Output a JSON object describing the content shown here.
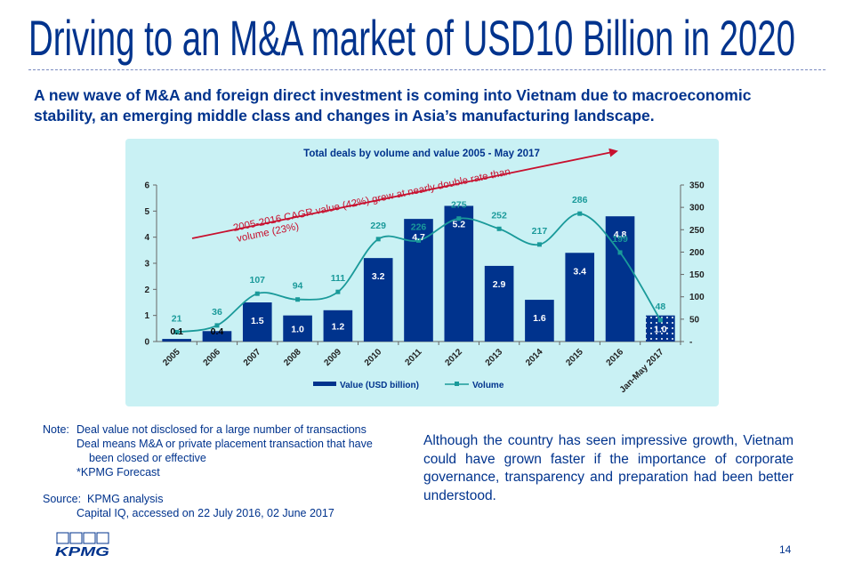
{
  "page": {
    "title": "Driving to an M&A market of USD10 Billion in 2020",
    "lead": "A new wave of M&A and foreign direct investment is coming into Vietnam due to macroeconomic stability, an emerging middle class and changes in Asia’s manufacturing landscape.",
    "notes": {
      "note_label": "Note:",
      "note_1": "Deal value not disclosed for a large number of transactions",
      "note_2a": "Deal means M&A or private placement transaction that have",
      "note_2b": "been closed or effective",
      "note_3": "*KPMG Forecast",
      "source_label": "Source:",
      "source_1": "KPMG analysis",
      "source_2": "Capital IQ, accessed on 22 July 2016, 02 June 2017"
    },
    "commentary": "Although the country has seen impressive growth, Vietnam could have grown faster if the importance of corporate governance, transparency and preparation had been better understood.",
    "logo_text": "KPMG",
    "page_number": "14"
  },
  "colors": {
    "brand": "#00338D",
    "bar": "#00338D",
    "line": "#1a9a9a",
    "chart_bg": "#c9f1f4",
    "arrow": "#c8102e"
  },
  "chart_data": {
    "type": "bar",
    "title": "Total deals by volume and value 2005 - May 2017",
    "categories": [
      "2005",
      "2006",
      "2007",
      "2008",
      "2009",
      "2010",
      "2011",
      "2012",
      "2013",
      "2014",
      "2015",
      "2016",
      "Jan-May 2017"
    ],
    "series": [
      {
        "name": "Value (USD billion)",
        "type": "bar",
        "axis": "left",
        "values": [
          0.1,
          0.4,
          1.5,
          1.0,
          1.2,
          3.2,
          4.7,
          5.2,
          2.9,
          1.6,
          3.4,
          4.8,
          1.0
        ],
        "labels": [
          "0.1",
          "0.4",
          "1.5",
          "1.0",
          "1.2",
          "3.2",
          "4.7",
          "5.2",
          "2.9",
          "1.6",
          "3.4",
          "4.8",
          "1.0"
        ]
      },
      {
        "name": "Volume",
        "type": "line",
        "axis": "right",
        "values": [
          21,
          36,
          107,
          94,
          111,
          229,
          226,
          275,
          252,
          217,
          286,
          199,
          48
        ],
        "labels": [
          "21",
          "36",
          "107",
          "94",
          "111",
          "229",
          "226",
          "275",
          "252",
          "217",
          "286",
          "199",
          "48"
        ]
      }
    ],
    "forecast_category": "Jan-May 2017",
    "y_left": {
      "min": 0,
      "max": 6,
      "ticks": [
        "0",
        "1",
        "2",
        "3",
        "4",
        "5",
        "6"
      ]
    },
    "y_right": {
      "min": 0,
      "max": 350,
      "ticks": [
        "-",
        "50",
        "100",
        "150",
        "200",
        "250",
        "300",
        "350"
      ]
    },
    "annotation": "2005-2016 CAGR value (42%) grew at nearly double rate than volume (23%)",
    "annotation_lines": [
      "2005-2016 CAGR value (42%) grew at nearly double rate than",
      "volume (23%)"
    ],
    "legend_position": "bottom",
    "grid": false
  }
}
